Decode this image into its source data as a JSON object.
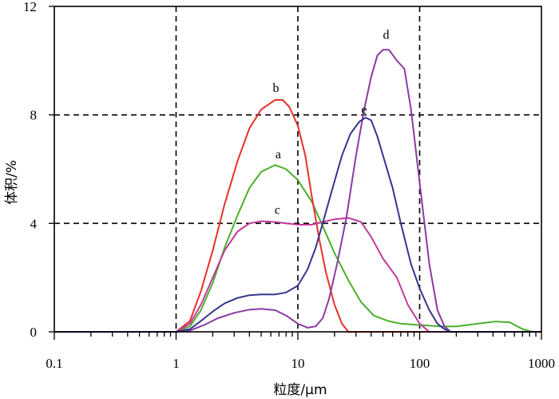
{
  "chart_data": {
    "type": "line",
    "xlabel": "粒度/μm",
    "ylabel": "体积/%",
    "x_scale": "log",
    "xlim": [
      0.1,
      1000
    ],
    "ylim": [
      0,
      12
    ],
    "x_ticks": [
      0.1,
      1,
      10,
      100,
      1000
    ],
    "x_tick_labels": [
      "0.1",
      "1",
      "10",
      "100",
      "1000"
    ],
    "y_ticks": [
      0,
      4,
      8,
      12
    ],
    "y_tick_labels": [
      "0",
      "4",
      "8",
      "12"
    ],
    "grid": "dashed at x = 1, 10, 100 and y = 4, 8",
    "legend": "none",
    "series": [
      {
        "label": "a",
        "color": "#4caf2a",
        "label_at": [
          6.9,
          6.4
        ],
        "points": [
          [
            0.1,
            0
          ],
          [
            1.0,
            0
          ],
          [
            1.3,
            0.2
          ],
          [
            1.6,
            0.8
          ],
          [
            2.0,
            1.8
          ],
          [
            2.5,
            3.1
          ],
          [
            3.2,
            4.3
          ],
          [
            4.0,
            5.3
          ],
          [
            5.0,
            5.9
          ],
          [
            6.5,
            6.15
          ],
          [
            8.0,
            6.0
          ],
          [
            10.0,
            5.6
          ],
          [
            13.0,
            4.8
          ],
          [
            16.0,
            3.9
          ],
          [
            20.0,
            2.9
          ],
          [
            26.0,
            1.9
          ],
          [
            33.0,
            1.1
          ],
          [
            42.0,
            0.6
          ],
          [
            55.0,
            0.4
          ],
          [
            70.0,
            0.3
          ],
          [
            100.0,
            0.25
          ],
          [
            150.0,
            0.2
          ],
          [
            200.0,
            0.2
          ],
          [
            300.0,
            0.3
          ],
          [
            420.0,
            0.38
          ],
          [
            550.0,
            0.35
          ],
          [
            700.0,
            0.1
          ],
          [
            850.0,
            0
          ],
          [
            1000.0,
            0
          ]
        ]
      },
      {
        "label": "b",
        "color": "#e8302a",
        "label_at": [
          6.6,
          8.85
        ],
        "points": [
          [
            0.1,
            0
          ],
          [
            1.0,
            0
          ],
          [
            1.3,
            0.4
          ],
          [
            1.6,
            1.5
          ],
          [
            2.0,
            3.0
          ],
          [
            2.5,
            4.7
          ],
          [
            3.2,
            6.3
          ],
          [
            4.0,
            7.5
          ],
          [
            5.0,
            8.2
          ],
          [
            6.5,
            8.55
          ],
          [
            7.5,
            8.55
          ],
          [
            8.5,
            8.3
          ],
          [
            10.0,
            7.6
          ],
          [
            11.5,
            6.5
          ],
          [
            13.0,
            5.0
          ],
          [
            15.0,
            3.4
          ],
          [
            17.0,
            2.2
          ],
          [
            20.0,
            1.0
          ],
          [
            23.0,
            0.3
          ],
          [
            26.0,
            0
          ],
          [
            1000.0,
            0
          ]
        ]
      },
      {
        "label": "c",
        "color": "#c23a9a",
        "label_at": [
          6.8,
          4.35
        ],
        "points": [
          [
            0.1,
            0
          ],
          [
            1.0,
            0
          ],
          [
            1.3,
            0.3
          ],
          [
            1.6,
            1.0
          ],
          [
            2.0,
            2.0
          ],
          [
            2.5,
            3.0
          ],
          [
            3.2,
            3.7
          ],
          [
            4.0,
            4.0
          ],
          [
            5.0,
            4.08
          ],
          [
            6.5,
            4.05
          ],
          [
            8.0,
            4.0
          ],
          [
            10.0,
            3.95
          ],
          [
            13.0,
            3.95
          ],
          [
            16.0,
            4.05
          ],
          [
            20.0,
            4.15
          ],
          [
            26.0,
            4.2
          ],
          [
            33.0,
            4.05
          ],
          [
            40.0,
            3.5
          ],
          [
            50.0,
            2.7
          ],
          [
            65.0,
            2.0
          ],
          [
            80.0,
            1.0
          ],
          [
            100.0,
            0.3
          ],
          [
            120.0,
            0
          ],
          [
            1000.0,
            0
          ]
        ]
      },
      {
        "label": "d",
        "color": "#8a3aa0",
        "label_at": [
          53,
          10.8
        ],
        "points": [
          [
            0.1,
            0
          ],
          [
            1.0,
            0
          ],
          [
            1.3,
            0.05
          ],
          [
            1.7,
            0.25
          ],
          [
            2.2,
            0.5
          ],
          [
            3.0,
            0.7
          ],
          [
            4.0,
            0.82
          ],
          [
            5.0,
            0.85
          ],
          [
            6.5,
            0.8
          ],
          [
            8.0,
            0.6
          ],
          [
            10.0,
            0.3
          ],
          [
            12.0,
            0.15
          ],
          [
            14.0,
            0.2
          ],
          [
            16.0,
            0.5
          ],
          [
            18.0,
            1.2
          ],
          [
            21.0,
            2.5
          ],
          [
            25.0,
            4.2
          ],
          [
            30.0,
            6.5
          ],
          [
            35.0,
            8.2
          ],
          [
            40.0,
            9.4
          ],
          [
            45.0,
            10.2
          ],
          [
            50.0,
            10.4
          ],
          [
            56.0,
            10.4
          ],
          [
            65.0,
            10.0
          ],
          [
            75.0,
            9.7
          ],
          [
            85.0,
            8.2
          ],
          [
            100.0,
            5.5
          ],
          [
            120.0,
            2.5
          ],
          [
            140.0,
            0.8
          ],
          [
            160.0,
            0.2
          ],
          [
            180.0,
            0
          ],
          [
            1000.0,
            0
          ]
        ]
      },
      {
        "label": "e",
        "color": "#35358f",
        "label_at": [
          35,
          8.05
        ],
        "points": [
          [
            0.1,
            0
          ],
          [
            1.0,
            0
          ],
          [
            1.3,
            0.1
          ],
          [
            1.6,
            0.4
          ],
          [
            2.0,
            0.75
          ],
          [
            2.5,
            1.05
          ],
          [
            3.2,
            1.25
          ],
          [
            4.0,
            1.35
          ],
          [
            5.0,
            1.38
          ],
          [
            6.5,
            1.38
          ],
          [
            8.0,
            1.45
          ],
          [
            10.0,
            1.7
          ],
          [
            12.0,
            2.3
          ],
          [
            14.0,
            3.1
          ],
          [
            16.0,
            4.0
          ],
          [
            19.0,
            5.2
          ],
          [
            23.0,
            6.5
          ],
          [
            27.0,
            7.3
          ],
          [
            32.0,
            7.75
          ],
          [
            36.0,
            7.9
          ],
          [
            40.0,
            7.8
          ],
          [
            45.0,
            7.2
          ],
          [
            50.0,
            6.5
          ],
          [
            60.0,
            5.3
          ],
          [
            70.0,
            4.0
          ],
          [
            85.0,
            2.5
          ],
          [
            100.0,
            1.6
          ],
          [
            120.0,
            0.8
          ],
          [
            140.0,
            0.3
          ],
          [
            160.0,
            0.1
          ],
          [
            180.0,
            0
          ],
          [
            1000.0,
            0
          ]
        ]
      }
    ]
  }
}
